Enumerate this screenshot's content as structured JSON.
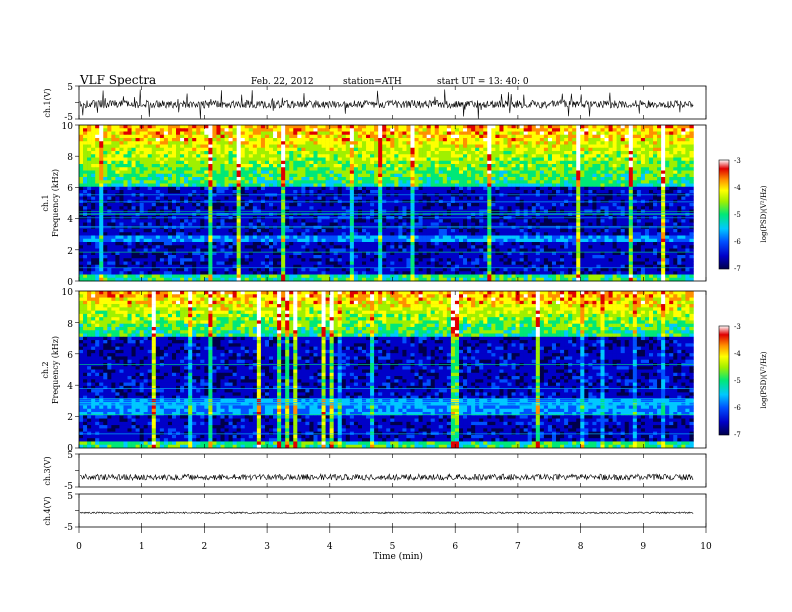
{
  "header": {
    "title": "VLF  Spectra",
    "date": "Feb. 22, 2012",
    "station": "station=ATH",
    "start": "start  UT  =    13: 40: 0"
  },
  "chart_data": {
    "type": "heatmap",
    "xlabel": "Time  (min)",
    "xlim": [
      0,
      10
    ],
    "xticks": [
      "0",
      "1",
      "2",
      "3",
      "4",
      "5",
      "6",
      "7",
      "8",
      "9",
      "10"
    ],
    "data_end_min": 9.8,
    "panels": [
      {
        "kind": "waveform",
        "ylabel": "ch.1(V)",
        "yticks": [
          "5",
          "-5"
        ],
        "ylim": [
          -5,
          5
        ],
        "baseline": -0.5,
        "noise": 1.2,
        "spike_prob": 0.04,
        "spike_range": [
          1.5,
          4.5
        ]
      },
      {
        "kind": "spectrogram",
        "ylabel": "ch.1",
        "ylabel2": "Frequency  (kHz)",
        "ylim": [
          0,
          10
        ],
        "yticks": [
          "0",
          "2",
          "4",
          "6",
          "8",
          "10"
        ],
        "colorbar": {
          "label": "log(PSD)(V²/Hz)",
          "ticks": [
            "-3",
            "-4",
            "-5",
            "-6",
            "-7"
          ],
          "range": [
            -7,
            -3
          ]
        },
        "features": {
          "lowband_khz": 6.0,
          "band_khz": [
            2.5,
            3.0
          ],
          "sferic_prob": 0.1
        }
      },
      {
        "kind": "spectrogram",
        "ylabel": "ch.2",
        "ylabel2": "Frequency  (kHz)",
        "ylim": [
          0,
          10
        ],
        "yticks": [
          "0",
          "2",
          "4",
          "6",
          "8",
          "10"
        ],
        "colorbar": {
          "label": "log(PSD)(V²/Hz)",
          "ticks": [
            "-3",
            "-4",
            "-5",
            "-6",
            "-7"
          ],
          "range": [
            -7,
            -3
          ]
        },
        "features": {
          "lowband_khz": 7.0,
          "band_khz": [
            2.0,
            3.2
          ],
          "sferic_prob": 0.12
        }
      },
      {
        "kind": "waveform",
        "ylabel": "ch.3(V)",
        "yticks": [
          "5",
          "-5"
        ],
        "ylim": [
          -5,
          5
        ],
        "baseline": -2.0,
        "noise": 0.9,
        "spike_prob": 0.0,
        "spike_range": [
          0,
          0
        ]
      },
      {
        "kind": "waveform",
        "ylabel": "ch.4(V)",
        "yticks": [
          "5",
          "-5"
        ],
        "ylim": [
          -5,
          5
        ],
        "baseline": -0.7,
        "noise": 0.25,
        "spike_prob": 0.0,
        "spike_range": [
          0,
          0
        ]
      }
    ],
    "colors": {
      "colormap": [
        "#00004a",
        "#0000c8",
        "#0050ff",
        "#00c8ff",
        "#00e878",
        "#a0f000",
        "#ffff00",
        "#ff9000",
        "#e00000",
        "#ffffff"
      ],
      "trace": "#000000"
    }
  }
}
